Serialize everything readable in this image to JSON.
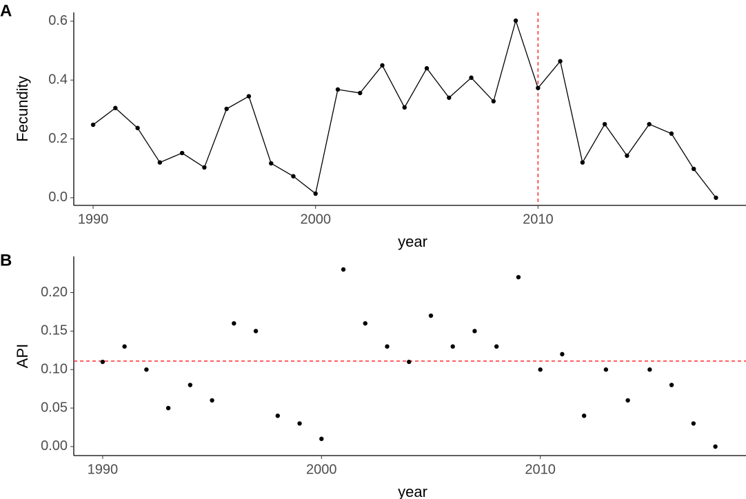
{
  "chart_data": [
    {
      "type": "line",
      "panel": "A",
      "x_label": "year",
      "y_label": "Fecundity",
      "x": [
        1990,
        1991,
        1992,
        1993,
        1994,
        1995,
        1996,
        1997,
        1998,
        1999,
        2000,
        2001,
        2002,
        2003,
        2004,
        2005,
        2006,
        2007,
        2008,
        2009,
        2010,
        2011,
        2012,
        2013,
        2014,
        2015,
        2016,
        2017,
        2018
      ],
      "values": [
        0.248,
        0.305,
        0.237,
        0.12,
        0.152,
        0.103,
        0.302,
        0.345,
        0.117,
        0.073,
        0.014,
        0.368,
        0.356,
        0.45,
        0.307,
        0.44,
        0.34,
        0.408,
        0.328,
        0.602,
        0.373,
        0.464,
        0.12,
        0.25,
        0.143,
        0.25,
        0.218,
        0.098,
        0.0
      ],
      "color": "#000000",
      "xlim": [
        1989.13,
        2019.35
      ],
      "xticks": [
        1990,
        2000,
        2010
      ],
      "ylim": [
        -0.026,
        0.63
      ],
      "yticks": [
        {
          "value": 0,
          "label": "0.0"
        },
        {
          "value": 0.2,
          "label": "0.2"
        },
        {
          "value": 0.4,
          "label": "0.4"
        },
        {
          "value": 0.6,
          "label": "0.6"
        }
      ],
      "vline": 2010,
      "ref_color": "#ff2a2a"
    },
    {
      "type": "scatter",
      "panel": "B",
      "x_label": "year",
      "y_label": "API",
      "x": [
        1990,
        1991,
        1992,
        1993,
        1994,
        1995,
        1996,
        1997,
        1998,
        1999,
        2000,
        2001,
        2002,
        2003,
        2004,
        2005,
        2006,
        2007,
        2008,
        2009,
        2010,
        2011,
        2012,
        2013,
        2014,
        2015,
        2016,
        2017,
        2018
      ],
      "values": [
        0.11,
        0.13,
        0.1,
        0.05,
        0.08,
        0.06,
        0.16,
        0.15,
        0.04,
        0.03,
        0.01,
        0.23,
        0.16,
        0.13,
        0.11,
        0.17,
        0.13,
        0.15,
        0.13,
        0.22,
        0.1,
        0.12,
        0.04,
        0.1,
        0.06,
        0.1,
        0.08,
        0.03,
        0.0
      ],
      "color": "#000000",
      "xlim": [
        1988.68,
        2019.4
      ],
      "xticks": [
        1990,
        2000,
        2010
      ],
      "ylim": [
        -0.0117,
        0.247
      ],
      "yticks": [
        {
          "value": 0,
          "label": "0.00"
        },
        {
          "value": 0.05,
          "label": "0.05"
        },
        {
          "value": 0.1,
          "label": "0.10"
        },
        {
          "value": 0.15,
          "label": "0.15"
        },
        {
          "value": 0.2,
          "label": "0.20"
        }
      ],
      "hline": 0.111,
      "ref_color": "#ff2a2a"
    }
  ]
}
